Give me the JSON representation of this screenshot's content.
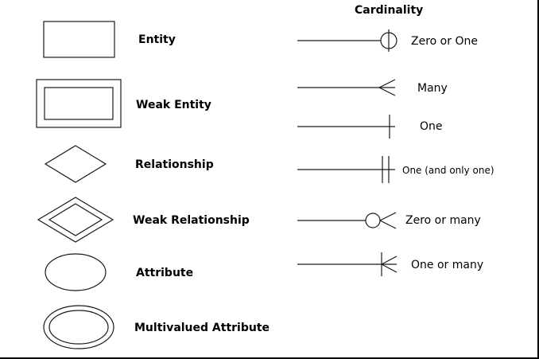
{
  "symbols": {
    "entity": "Entity",
    "weak_entity": "Weak Entity",
    "relationship": "Relationship",
    "weak_relationship": "Weak Relationship",
    "attribute": "Attribute",
    "multivalued_attribute": "Multivalued Attribute"
  },
  "cardinality": {
    "title": "Cardinality",
    "zero_or_one": "Zero or One",
    "many": "Many",
    "one": "One",
    "one_and_only_one": "One (and only one)",
    "zero_or_many": "Zero or many",
    "one_or_many": "One or many"
  }
}
